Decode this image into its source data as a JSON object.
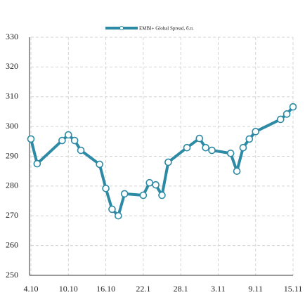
{
  "chart_data": {
    "type": "line",
    "x": [
      0,
      1,
      5,
      6,
      7,
      8,
      11,
      12,
      13,
      14,
      15,
      18,
      19,
      20,
      21,
      22,
      25,
      27,
      28,
      29,
      32,
      33,
      34,
      35,
      36,
      40,
      41,
      42
    ],
    "series": [
      {
        "name": "EMBI+ Global Spread, б.п.",
        "color": "#2c8aa5",
        "values": [
          295.8,
          287.5,
          295.3,
          297.2,
          295.3,
          292,
          287.3,
          279.2,
          272.2,
          270,
          277.4,
          276.9,
          281.1,
          280.4,
          276.9,
          288,
          292.9,
          296,
          292.9,
          292,
          291,
          285,
          292.9,
          295.8,
          298.3,
          302.4,
          304.2,
          306.6
        ]
      }
    ],
    "xlim": [
      0,
      42
    ],
    "xticks": [
      {
        "value": 0,
        "label": "4.10"
      },
      {
        "value": 6,
        "label": "10.10"
      },
      {
        "value": 12,
        "label": "16.10"
      },
      {
        "value": 18,
        "label": "22.1"
      },
      {
        "value": 24,
        "label": "28.1"
      },
      {
        "value": 30,
        "label": "3.11"
      },
      {
        "value": 36,
        "label": "9.11"
      },
      {
        "value": 42,
        "label": "15.11"
      }
    ],
    "ylim": [
      250,
      330
    ],
    "yticks": [
      250,
      260,
      270,
      280,
      290,
      300,
      310,
      320,
      330
    ],
    "grid": true,
    "legend": "top"
  }
}
